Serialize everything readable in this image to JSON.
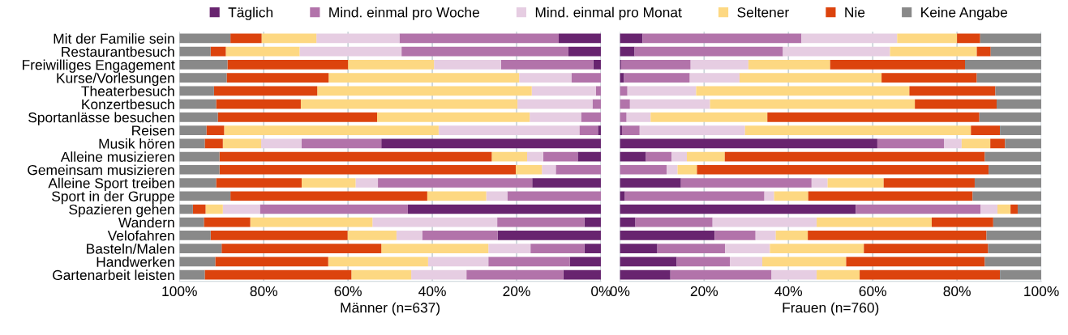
{
  "chart_data": [
    {
      "type": "bar",
      "orientation": "horizontal",
      "stacked": true,
      "xlabel": "Männer (n=637)",
      "legend": "top",
      "grid": "x",
      "xlim": [
        100,
        0
      ],
      "xticks": [
        {
          "value": 100,
          "label": "100%"
        },
        {
          "value": 80,
          "label": "80%"
        },
        {
          "value": 60,
          "label": "60%"
        },
        {
          "value": 40,
          "label": "40%"
        },
        {
          "value": 20,
          "label": "20%"
        },
        {
          "value": 0,
          "label": "0%"
        }
      ],
      "categories": [
        "Mit der Familie sein",
        "Restaurantbesuch",
        "Freiwilliges Engagement",
        "Kurse/Vorlesungen",
        "Theaterbesuch",
        "Konzertbesuch",
        "Sportanlässe besuchen",
        "Reisen",
        "Musik hören",
        "Alleine musizieren",
        "Gemeinsam musizieren",
        "Alleine Sport treiben",
        "Sport in der Gruppe",
        "Spazieren gehen",
        "Wandern",
        "Velofahren",
        "Basteln/Malen",
        "Handwerken",
        "Gartenarbeit leisten"
      ],
      "series": [
        {
          "name": "Täglich",
          "color": "#68246f",
          "values": [
            10.0,
            7.7,
            1.8,
            0,
            0,
            0,
            0,
            0.7,
            52.1,
            5.5,
            0,
            16.3,
            0,
            45.8,
            3.9,
            24.5,
            3.9,
            7.4,
            8.9
          ]
        },
        {
          "name": "Mind. einmal pro Woche",
          "color": "#b273aa",
          "values": [
            37.8,
            39.6,
            21.9,
            7.0,
            1.2,
            2.0,
            4.7,
            4.4,
            18.9,
            8.2,
            10.7,
            36.6,
            22.2,
            35.1,
            20.7,
            17.9,
            12.8,
            19.3,
            23.0
          ]
        },
        {
          "name": "Mind. einmal pro Monat",
          "color": "#e6cde2",
          "values": [
            19.7,
            24.2,
            15.9,
            12.4,
            15.2,
            17.8,
            12.2,
            33.4,
            9.6,
            3.8,
            3.3,
            5.3,
            5.0,
            8.8,
            29.6,
            6.1,
            10.0,
            14.3,
            13.1
          ]
        },
        {
          "name": "Seltener",
          "color": "#fdd882",
          "values": [
            13.0,
            17.5,
            20.4,
            45.2,
            50.9,
            51.4,
            36.2,
            50.9,
            9.1,
            8.4,
            6.2,
            12.8,
            14.0,
            4.1,
            29.0,
            11.6,
            25.4,
            23.7,
            14.2
          ]
        },
        {
          "name": "Nie",
          "color": "#dc430d",
          "values": [
            7.4,
            3.6,
            28.6,
            24.2,
            24.5,
            20.1,
            37.8,
            4.2,
            4.3,
            64.6,
            70.3,
            20.3,
            46.7,
            3.0,
            11.0,
            32.5,
            37.9,
            26.8,
            34.8
          ]
        },
        {
          "name": "Keine Angabe",
          "color": "#898989",
          "values": [
            12.1,
            7.4,
            11.4,
            11.2,
            8.2,
            8.7,
            9.1,
            6.4,
            6.0,
            9.5,
            9.5,
            8.7,
            12.1,
            3.2,
            5.8,
            7.4,
            10.0,
            8.5,
            6.0
          ]
        }
      ]
    },
    {
      "type": "bar",
      "orientation": "horizontal",
      "stacked": true,
      "xlabel": "Frauen (n=760)",
      "grid": "x",
      "xlim": [
        0,
        100
      ],
      "xticks": [
        {
          "value": 0,
          "label": "0%"
        },
        {
          "value": 20,
          "label": "20%"
        },
        {
          "value": 40,
          "label": "40%"
        },
        {
          "value": 60,
          "label": "60%"
        },
        {
          "value": 80,
          "label": "80%"
        },
        {
          "value": 100,
          "label": "100%"
        }
      ],
      "categories": [
        null,
        null,
        null,
        null,
        null,
        null,
        null,
        null,
        null,
        null,
        null,
        null,
        null,
        null,
        null,
        null,
        null,
        null,
        null
      ],
      "series": [
        {
          "color": "#68246f",
          "values": [
            5.4,
            3.5,
            0.3,
            1.0,
            0,
            0,
            0,
            0.5,
            61.1,
            6.2,
            0,
            14.5,
            1.2,
            56.0,
            3.7,
            22.5,
            8.9,
            13.5,
            12.0
          ]
        },
        {
          "color": "#b273aa",
          "values": [
            37.7,
            35.2,
            16.5,
            15.6,
            1.8,
            2.4,
            1.6,
            4.2,
            15.8,
            6.1,
            11.1,
            31.0,
            33.1,
            29.6,
            18.3,
            9.7,
            16.1,
            12.6,
            24.0
          ]
        },
        {
          "color": "#e6cde2",
          "values": [
            22.7,
            25.4,
            13.7,
            11.8,
            16.3,
            19.0,
            5.7,
            25.0,
            4.2,
            3.6,
            2.6,
            3.8,
            2.3,
            4.0,
            24.7,
            4.8,
            10.6,
            7.7,
            10.7
          ]
        },
        {
          "color": "#fdd882",
          "values": [
            14.2,
            20.6,
            19.4,
            33.7,
            50.6,
            48.6,
            27.7,
            53.6,
            6.8,
            9.0,
            4.6,
            13.3,
            8.1,
            3.1,
            27.3,
            7.6,
            22.3,
            19.9,
            10.2
          ]
        },
        {
          "color": "#dc430d",
          "values": [
            5.5,
            3.3,
            32.0,
            22.6,
            20.4,
            19.4,
            50.3,
            6.9,
            3.5,
            61.7,
            69.2,
            21.6,
            39.0,
            1.7,
            14.6,
            42.4,
            29.5,
            32.9,
            33.3
          ]
        },
        {
          "color": "#898989",
          "values": [
            14.5,
            12.0,
            18.1,
            15.3,
            10.9,
            10.6,
            14.7,
            9.9,
            8.6,
            13.4,
            12.5,
            15.8,
            16.3,
            5.6,
            11.4,
            13.0,
            12.6,
            13.4,
            9.8
          ]
        }
      ]
    }
  ]
}
